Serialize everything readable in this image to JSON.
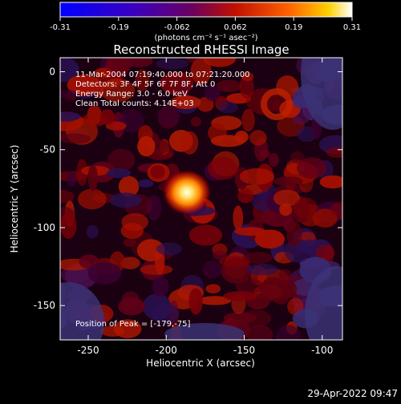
{
  "colorbar": {
    "tick_labels": [
      "-0.31",
      "-0.19",
      "-0.062",
      "0.062",
      "0.19",
      "0.31"
    ],
    "units_label": "(photons cm⁻² s⁻¹ asec⁻²)"
  },
  "image": {
    "title": "Reconstructed RHESSI Image",
    "info_lines": [
      "11-Mar-2004 07:19:40.000 to 07:21:20.000",
      "Detectors: 3F 4F 5F 6F 7F 8F, Att 0",
      "Energy Range: 3.0 - 6.0 keV",
      "Clean     Total counts: 4.14E+03"
    ],
    "peak_text": "Position of Peak = [-179,-75]",
    "peak": {
      "x": -179,
      "y": -75
    }
  },
  "axes": {
    "xlabel": "Heliocentric X (arcsec)",
    "ylabel": "Heliocentric Y (arcsec)",
    "xlim": [
      -268,
      -87
    ],
    "ylim": [
      -172,
      9
    ],
    "xticks": [
      "-250",
      "-200",
      "-150",
      "-100"
    ],
    "yticks": [
      "0",
      "-50",
      "-100",
      "-150"
    ]
  },
  "footer": {
    "date": "29-Apr-2022 09:47"
  },
  "colors": {
    "background": "#000000",
    "colorbar_stops": [
      "#0000ff",
      "#4000c0",
      "#800080",
      "#c00020",
      "#ff6000",
      "#ffd000",
      "#ffffff"
    ]
  }
}
